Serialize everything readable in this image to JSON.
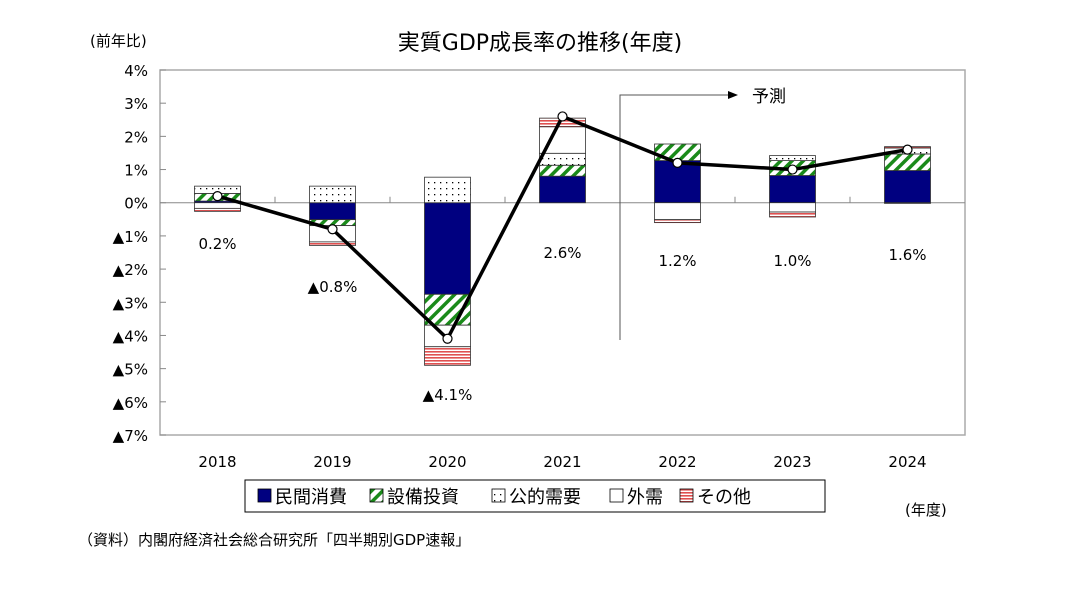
{
  "chart_data": {
    "type": "bar",
    "subtype": "stacked bar with line",
    "title": "実質GDP成長率の推移(年度)",
    "ylabel": "(前年比)",
    "xlabel": "(年度)",
    "ylim": [
      -7,
      4
    ],
    "yticks": [
      4,
      3,
      2,
      1,
      0,
      -1,
      -2,
      -3,
      -4,
      -5,
      -6,
      -7
    ],
    "ytick_labels": [
      "4%",
      "3%",
      "2%",
      "1%",
      "0%",
      "▲1%",
      "▲2%",
      "▲3%",
      "▲4%",
      "▲5%",
      "▲6%",
      "▲7%"
    ],
    "categories": [
      "2018",
      "2019",
      "2020",
      "2021",
      "2022",
      "2023",
      "2024"
    ],
    "series": [
      {
        "name": "民間消費",
        "color": "#000080",
        "pattern": "solid",
        "values": [
          0.05,
          -0.51,
          -2.76,
          0.8,
          1.27,
          0.82,
          0.97
        ]
      },
      {
        "name": "設備投資",
        "color": "#1a8a1a",
        "pattern": "diagonal",
        "values": [
          0.23,
          -0.18,
          -0.93,
          0.33,
          0.5,
          0.45,
          0.5
        ]
      },
      {
        "name": "公的需要",
        "color": "#000000",
        "pattern": "dots",
        "values": [
          0.22,
          0.5,
          0.77,
          0.36,
          0.0,
          0.15,
          0.18
        ]
      },
      {
        "name": "外需",
        "color": "#ffffff",
        "pattern": "blank",
        "values": [
          -0.17,
          -0.49,
          -0.65,
          0.8,
          -0.51,
          -0.28,
          -0.02
        ]
      },
      {
        "name": "その他",
        "color": "#e05050",
        "pattern": "horizontal",
        "values": [
          -0.09,
          -0.11,
          -0.56,
          0.26,
          -0.09,
          -0.15,
          0.04
        ]
      }
    ],
    "line": {
      "values": [
        0.2,
        -0.8,
        -4.1,
        2.6,
        1.2,
        1.0,
        1.6
      ]
    },
    "data_labels": [
      "0.2%",
      "▲0.8%",
      "▲4.1%",
      "2.6%",
      "1.2%",
      "1.0%",
      "1.6%"
    ],
    "annotation": "予測",
    "forecast_start": "2022",
    "legend_placement": "bottom",
    "grid": false,
    "source": "（資料）内閣府経済社会総合研究所「四半期別GDP速報」"
  }
}
